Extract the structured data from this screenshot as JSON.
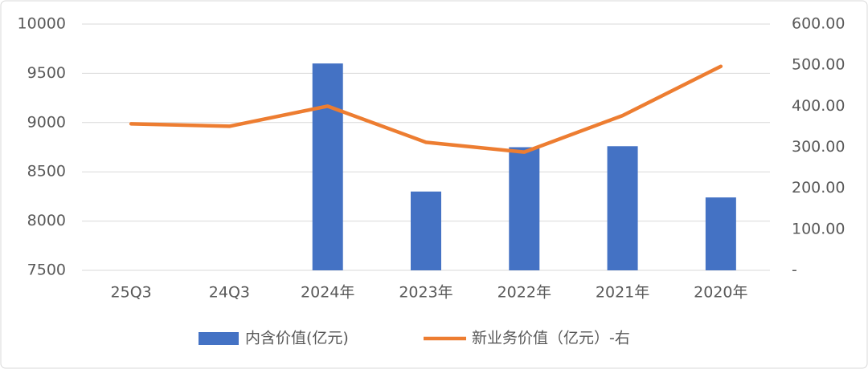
{
  "chart_data": {
    "type": "bar-line",
    "categories": [
      "25Q3",
      "24Q3",
      "2024年",
      "2023年",
      "2022年",
      "2021年",
      "2020年"
    ],
    "series": [
      {
        "name": "内含价值(亿元)",
        "type": "bar",
        "color": "#4472c4",
        "values": [
          null,
          null,
          9600,
          8300,
          8750,
          8760,
          8240
        ]
      },
      {
        "name": "新业务价值（亿元）-右",
        "type": "line",
        "axis": "y2",
        "color": "#ed7d31",
        "values": [
          357,
          351,
          400,
          312,
          288,
          377,
          497
        ]
      }
    ],
    "ylim": [
      7500,
      10000
    ],
    "yticks": [
      7500,
      8000,
      8500,
      9000,
      9500,
      10000
    ],
    "y2lim": [
      0,
      600
    ],
    "y2ticks": [
      {
        "value": 0,
        "label": "-"
      },
      {
        "value": 100,
        "label": "100.00"
      },
      {
        "value": 200,
        "label": "200.00"
      },
      {
        "value": 300,
        "label": "300.00"
      },
      {
        "value": 400,
        "label": "400.00"
      },
      {
        "value": 500,
        "label": "500.00"
      },
      {
        "value": 600,
        "label": "600.00"
      }
    ],
    "grid": true,
    "legend": "bottom"
  }
}
